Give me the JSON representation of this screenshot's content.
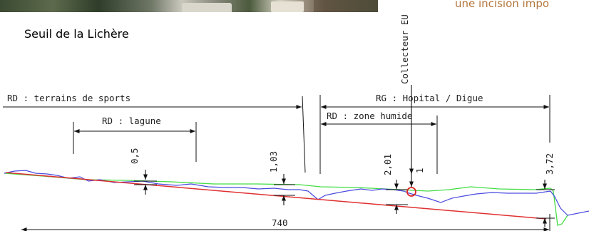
{
  "header": {
    "corner_title": "une incision impo",
    "site_title": "Seuil de la Lichère"
  },
  "annotations": {
    "rd_terrains": "RD : terrains de sports",
    "rd_lagune": "RD : lagune",
    "rg_hopital": "RG : Hopital / Digue",
    "rd_zone_humide": "RD : zone humide",
    "collecteur": "Collecteur EU"
  },
  "dimensions": {
    "d1": "0,5",
    "d2": "1,03",
    "d3": "2,01",
    "d4": "1",
    "d5": "3,72",
    "length": "740"
  },
  "colors": {
    "profile_blue": "#4a4ae0",
    "profile_green": "#44dd44",
    "slope_red": "#e03030",
    "marker": "#dd2222"
  }
}
